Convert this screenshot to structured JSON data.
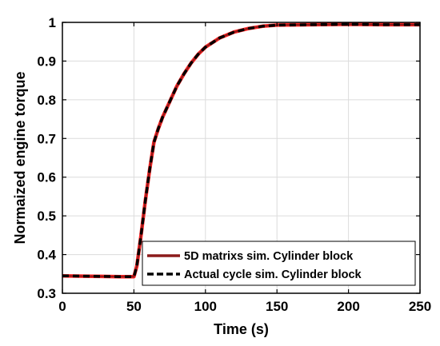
{
  "chart_data": {
    "type": "line",
    "title": "",
    "xlabel": "Time (s)",
    "ylabel": "Normaized engine torque",
    "xlim": [
      0,
      250
    ],
    "ylim": [
      0.3,
      1.0
    ],
    "xticks": [
      "0",
      "50",
      "100",
      "150",
      "200",
      "250"
    ],
    "yticks": [
      "0.3",
      "0.4",
      "0.5",
      "0.6",
      "0.7",
      "0.8",
      "0.9",
      "1"
    ],
    "grid": true,
    "legend_position": "bottom-right",
    "series": [
      {
        "name": "5D matrixs sim. Cylinder block",
        "color": "#8B1A1A",
        "style": "solid",
        "x": [
          0,
          20,
          40,
          50,
          52,
          55,
          58,
          61,
          64,
          67,
          70,
          75,
          80,
          85,
          90,
          95,
          100,
          110,
          120,
          130,
          140,
          150,
          175,
          200,
          225,
          250
        ],
        "y": [
          0.345,
          0.344,
          0.343,
          0.343,
          0.37,
          0.45,
          0.54,
          0.62,
          0.69,
          0.725,
          0.755,
          0.795,
          0.835,
          0.867,
          0.895,
          0.918,
          0.936,
          0.96,
          0.975,
          0.984,
          0.99,
          0.993,
          0.994,
          0.995,
          0.994,
          0.994
        ]
      },
      {
        "name": "Actual cycle sim. Cylinder block",
        "color": "#000000",
        "style": "dashed",
        "x": [
          0,
          20,
          40,
          50,
          52,
          55,
          58,
          61,
          64,
          67,
          70,
          75,
          80,
          85,
          90,
          95,
          100,
          110,
          120,
          130,
          140,
          150,
          175,
          200,
          225,
          250
        ],
        "y": [
          0.345,
          0.344,
          0.343,
          0.343,
          0.37,
          0.45,
          0.54,
          0.62,
          0.69,
          0.725,
          0.755,
          0.795,
          0.835,
          0.867,
          0.895,
          0.918,
          0.936,
          0.96,
          0.975,
          0.984,
          0.99,
          0.993,
          0.994,
          0.995,
          0.994,
          0.994
        ]
      }
    ],
    "overlay_color": "#FF2020"
  }
}
